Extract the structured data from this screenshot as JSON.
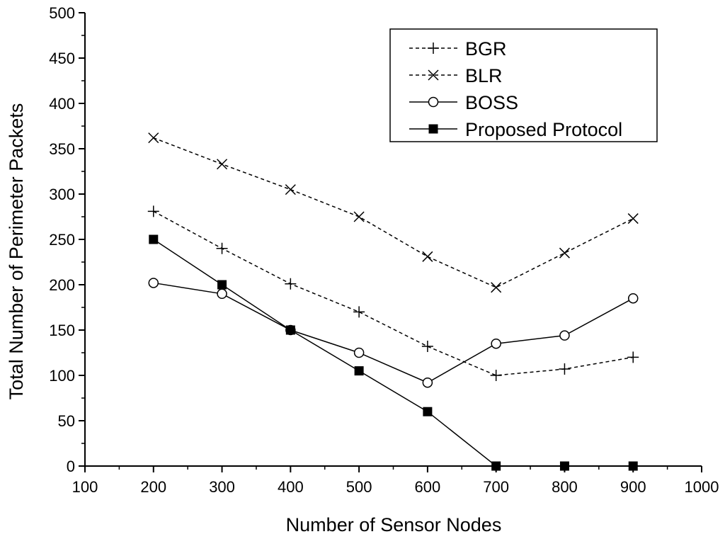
{
  "chart_data": {
    "type": "line",
    "title": "",
    "xlabel": "Number of Sensor Nodes",
    "ylabel": "Total Number of Perimeter Packets",
    "xlim": [
      100,
      1000
    ],
    "ylim": [
      0,
      500
    ],
    "x_ticks": [
      100,
      200,
      300,
      400,
      500,
      600,
      700,
      800,
      900,
      1000
    ],
    "y_ticks": [
      0,
      50,
      100,
      150,
      200,
      250,
      300,
      350,
      400,
      450,
      500
    ],
    "grid": false,
    "legend_position": "top-right",
    "x": [
      200,
      300,
      400,
      500,
      600,
      700,
      800,
      900
    ],
    "series": [
      {
        "name": "BGR",
        "values": [
          281,
          240,
          201,
          170,
          132,
          100,
          107,
          120
        ],
        "marker": "plus",
        "line": "dashed",
        "markerFill": "none",
        "color": "#000000"
      },
      {
        "name": "BLR",
        "values": [
          362,
          333,
          305,
          275,
          231,
          197,
          235,
          273
        ],
        "marker": "cross",
        "line": "dashed",
        "markerFill": "none",
        "color": "#000000"
      },
      {
        "name": "BOSS",
        "values": [
          202,
          190,
          150,
          125,
          92,
          135,
          144,
          185
        ],
        "marker": "circle",
        "line": "solid",
        "markerFill": "#ffffff",
        "color": "#000000"
      },
      {
        "name": "Proposed Protocol",
        "values": [
          250,
          200,
          150,
          105,
          60,
          0,
          0,
          0
        ],
        "marker": "square",
        "line": "solid",
        "markerFill": "#000000",
        "color": "#000000"
      }
    ]
  }
}
